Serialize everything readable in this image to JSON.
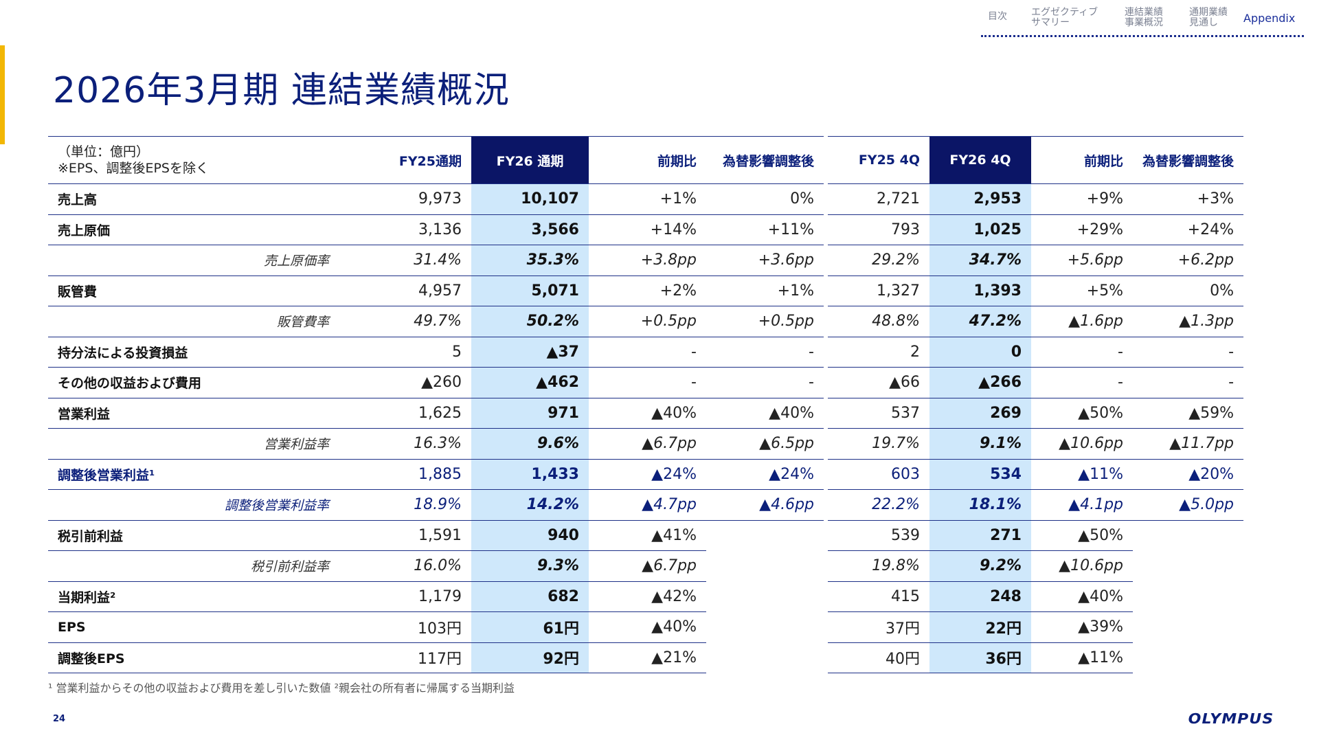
{
  "header": {
    "title": "2026年3月期 連結業績概況",
    "nav": [
      {
        "label": "目次",
        "active": false
      },
      {
        "label": "エグゼクティブ\nサマリー",
        "active": false
      },
      {
        "label": "連結業績\n事業概況",
        "active": false
      },
      {
        "label": "通期業績\n見通し",
        "active": false
      },
      {
        "label": "Appendix",
        "active": true
      }
    ]
  },
  "unit_note": "（単位：億円）\n※EPS、調整後EPSを除く",
  "full_year": {
    "headers": [
      "FY25通期",
      "FY26 通期",
      "前期比",
      "為替影響調整後"
    ],
    "rows": [
      {
        "label": "売上高",
        "type": "main",
        "values": [
          "9,973",
          "10,107",
          "+1%",
          "0%"
        ]
      },
      {
        "label": "売上原価",
        "type": "main",
        "values": [
          "3,136",
          "3,566",
          "+14%",
          "+11%"
        ]
      },
      {
        "label": "売上原価率",
        "type": "sub",
        "values": [
          "31.4%",
          "35.3%",
          "+3.8pp",
          "+3.6pp"
        ]
      },
      {
        "label": "販管費",
        "type": "main",
        "values": [
          "4,957",
          "5,071",
          "+2%",
          "+1%"
        ]
      },
      {
        "label": "販管費率",
        "type": "sub",
        "values": [
          "49.7%",
          "50.2%",
          "+0.5pp",
          "+0.5pp"
        ]
      },
      {
        "label": "持分法による投資損益",
        "type": "main",
        "values": [
          "5",
          "▲37",
          "-",
          "-"
        ]
      },
      {
        "label": "その他の収益および費用",
        "type": "main",
        "values": [
          "▲260",
          "▲462",
          "-",
          "-"
        ]
      },
      {
        "label": "営業利益",
        "type": "main",
        "values": [
          "1,625",
          "971",
          "▲40%",
          "▲40%"
        ]
      },
      {
        "label": "営業利益率",
        "type": "sub",
        "values": [
          "16.3%",
          "9.6%",
          "▲6.7pp",
          "▲6.5pp"
        ]
      },
      {
        "label": "調整後営業利益¹",
        "type": "main-blue",
        "values": [
          "1,885",
          "1,433",
          "▲24%",
          "▲24%"
        ]
      },
      {
        "label": "調整後営業利益率",
        "type": "sub-blue",
        "values": [
          "18.9%",
          "14.2%",
          "▲4.7pp",
          "▲4.6pp"
        ]
      },
      {
        "label": "税引前利益",
        "type": "main",
        "values": [
          "1,591",
          "940",
          "▲41%",
          ""
        ]
      },
      {
        "label": "税引前利益率",
        "type": "sub",
        "values": [
          "16.0%",
          "9.3%",
          "▲6.7pp",
          ""
        ]
      },
      {
        "label": "当期利益²",
        "type": "main",
        "values": [
          "1,179",
          "682",
          "▲42%",
          ""
        ]
      },
      {
        "label": "EPS",
        "type": "main",
        "values": [
          "103円",
          "61円",
          "▲40%",
          ""
        ]
      },
      {
        "label": "調整後EPS",
        "type": "main",
        "values": [
          "117円",
          "92円",
          "▲21%",
          ""
        ]
      }
    ]
  },
  "quarter": {
    "headers": [
      "FY25 4Q",
      "FY26 4Q",
      "前期比",
      "為替影響調整後"
    ],
    "rows": [
      [
        "2,721",
        "2,953",
        "+9%",
        "+3%"
      ],
      [
        "793",
        "1,025",
        "+29%",
        "+24%"
      ],
      [
        "29.2%",
        "34.7%",
        "+5.6pp",
        "+6.2pp"
      ],
      [
        "1,327",
        "1,393",
        "+5%",
        "0%"
      ],
      [
        "48.8%",
        "47.2%",
        "▲1.6pp",
        "▲1.3pp"
      ],
      [
        "2",
        "0",
        "-",
        "-"
      ],
      [
        "▲66",
        "▲266",
        "-",
        "-"
      ],
      [
        "537",
        "269",
        "▲50%",
        "▲59%"
      ],
      [
        "19.7%",
        "9.1%",
        "▲10.6pp",
        "▲11.7pp"
      ],
      [
        "603",
        "534",
        "▲11%",
        "▲20%"
      ],
      [
        "22.2%",
        "18.1%",
        "▲4.1pp",
        "▲5.0pp"
      ],
      [
        "539",
        "271",
        "▲50%",
        ""
      ],
      [
        "19.8%",
        "9.2%",
        "▲10.6pp",
        ""
      ],
      [
        "415",
        "248",
        "▲40%",
        ""
      ],
      [
        "37円",
        "22円",
        "▲39%",
        ""
      ],
      [
        "40円",
        "36円",
        "▲11%",
        ""
      ]
    ]
  },
  "footnote": "¹ 営業利益からその他の収益および費用を差し引いた数値 ²親会社の所有者に帰属する当期利益",
  "page_number": "24",
  "logo_text": "OLYMPUS",
  "colors": {
    "navy": "#0b1566",
    "highlight": "#cfe8fb",
    "accent": "#f2b705"
  }
}
